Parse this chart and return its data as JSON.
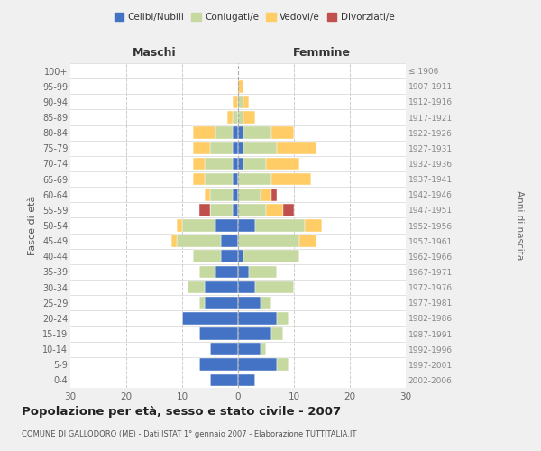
{
  "age_groups": [
    "0-4",
    "5-9",
    "10-14",
    "15-19",
    "20-24",
    "25-29",
    "30-34",
    "35-39",
    "40-44",
    "45-49",
    "50-54",
    "55-59",
    "60-64",
    "65-69",
    "70-74",
    "75-79",
    "80-84",
    "85-89",
    "90-94",
    "95-99",
    "100+"
  ],
  "birth_years": [
    "2002-2006",
    "1997-2001",
    "1992-1996",
    "1987-1991",
    "1982-1986",
    "1977-1981",
    "1972-1976",
    "1967-1971",
    "1962-1966",
    "1957-1961",
    "1952-1956",
    "1947-1951",
    "1942-1946",
    "1937-1941",
    "1932-1936",
    "1927-1931",
    "1922-1926",
    "1917-1921",
    "1912-1916",
    "1907-1911",
    "≤ 1906"
  ],
  "maschi_celibi": [
    5,
    7,
    5,
    7,
    10,
    6,
    6,
    4,
    3,
    3,
    4,
    1,
    1,
    1,
    1,
    1,
    1,
    0,
    0,
    0,
    0
  ],
  "maschi_coniugati": [
    0,
    0,
    0,
    0,
    0,
    1,
    3,
    3,
    5,
    8,
    6,
    4,
    4,
    5,
    5,
    4,
    3,
    1,
    0,
    0,
    0
  ],
  "maschi_vedovi": [
    0,
    0,
    0,
    0,
    0,
    0,
    0,
    0,
    0,
    1,
    1,
    0,
    1,
    2,
    2,
    3,
    4,
    1,
    1,
    0,
    0
  ],
  "maschi_divorziati": [
    0,
    0,
    0,
    0,
    0,
    0,
    0,
    0,
    0,
    0,
    0,
    2,
    0,
    0,
    0,
    0,
    0,
    0,
    0,
    0,
    0
  ],
  "femmine_celibi": [
    3,
    7,
    4,
    6,
    7,
    4,
    3,
    2,
    1,
    0,
    3,
    0,
    0,
    0,
    1,
    1,
    1,
    0,
    0,
    0,
    0
  ],
  "femmine_coniugati": [
    0,
    2,
    1,
    2,
    2,
    2,
    7,
    5,
    10,
    11,
    9,
    5,
    4,
    6,
    4,
    6,
    5,
    1,
    1,
    0,
    0
  ],
  "femmine_vedovi": [
    0,
    0,
    0,
    0,
    0,
    0,
    0,
    0,
    0,
    3,
    3,
    3,
    2,
    7,
    6,
    7,
    4,
    2,
    1,
    1,
    0
  ],
  "femmine_divorziati": [
    0,
    0,
    0,
    0,
    0,
    0,
    0,
    0,
    0,
    0,
    0,
    2,
    1,
    0,
    0,
    0,
    0,
    0,
    0,
    0,
    0
  ],
  "colors": {
    "celibi": "#4472C4",
    "coniugati": "#C5D9A0",
    "vedovi": "#FFCC66",
    "divorziati": "#C0504D"
  },
  "xlim": 30,
  "title": "Popolazione per età, sesso e stato civile - 2007",
  "subtitle": "COMUNE DI GALLODORO (ME) - Dati ISTAT 1° gennaio 2007 - Elaborazione TUTTITALIA.IT",
  "ylabel_left": "Fasce di età",
  "ylabel_right": "Anni di nascita",
  "xlabel_left": "Maschi",
  "xlabel_right": "Femmine",
  "legend_labels": [
    "Celibi/Nubili",
    "Coniugati/e",
    "Vedovi/e",
    "Divorziati/e"
  ],
  "bg_color": "#f0f0f0",
  "plot_bg": "#ffffff",
  "grid_color": "#cccccc"
}
